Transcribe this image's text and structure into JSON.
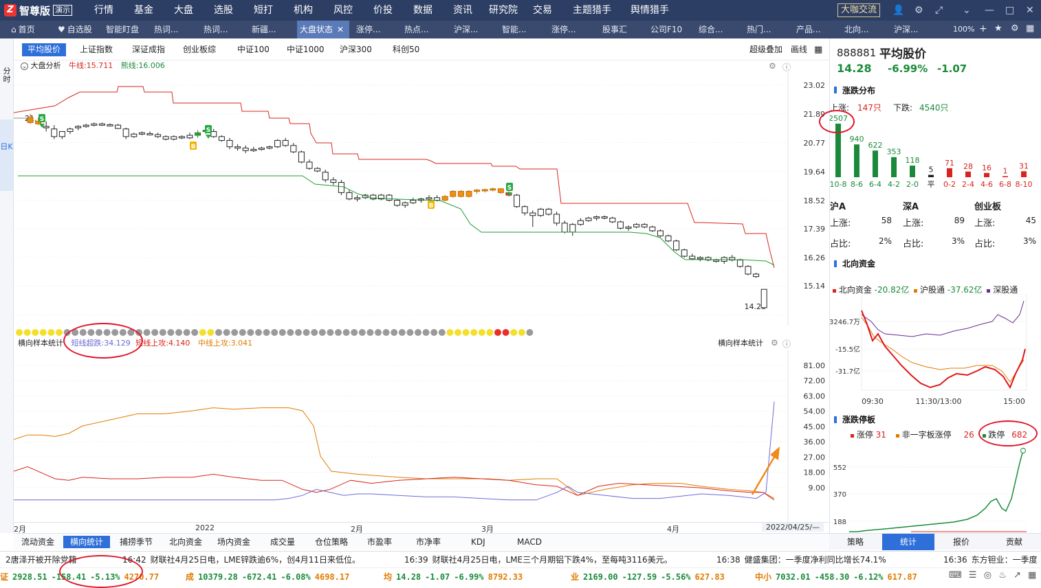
{
  "app": {
    "logo_text": "智尊版",
    "demo_badge": "演示",
    "consult_button": "大咖交流"
  },
  "topnav": [
    "行情",
    "基金",
    "大盘",
    "选股",
    "短打",
    "机构",
    "风控",
    "价投",
    "数据",
    "资讯",
    "研究院",
    "交易",
    "主题猎手",
    "舆情猎手"
  ],
  "tabs": [
    "首页",
    "自选股",
    "智能盯盘",
    "热词...",
    "热词...",
    "新疆...",
    "大盘状态",
    "涨停...",
    "热点...",
    "沪深...",
    "智能...",
    "涨停...",
    "股事汇",
    "公司F10",
    "综合...",
    "热门...",
    "产品...",
    "北向...",
    "沪深..."
  ],
  "active_tab_index": 6,
  "zoom_label": "100%",
  "left_tools": {
    "fenshi": "分时",
    "rik": "日K"
  },
  "index_tabs": [
    "平均股价",
    "上证指数",
    "深证成指",
    "创业板综",
    "中证100",
    "中证1000",
    "沪深300",
    "科创50"
  ],
  "index_right": {
    "overlay": "超级叠加",
    "draw": "画线"
  },
  "main_legend": {
    "title": "大盘分析",
    "bull_label": "牛线:",
    "bull_value": "15.711",
    "bear_label": "熊线:",
    "bear_value": "16.006"
  },
  "y_ticks_main": [
    "23.02",
    "21.89",
    "20.77",
    "19.64",
    "18.52",
    "17.39",
    "16.26",
    "15.14"
  ],
  "last_price_label": "14.28",
  "first_price_label": "21.",
  "dot_colors": {
    "grey": "#9a9a9a",
    "yellow": "#f3e02a",
    "red": "#e8302a"
  },
  "sub_legend": {
    "title": "横向样本统计",
    "short_label": "短线超跌:",
    "short_value": "34.129",
    "up_label": "短线上攻:",
    "up_value": "4.140",
    "mid_label": "中线上攻:",
    "mid_value": "3.041",
    "right_title": "横向样本统计"
  },
  "y_ticks_sub": [
    "81.00",
    "72.00",
    "63.00",
    "54.00",
    "45.00",
    "36.00",
    "27.00",
    "18.00",
    "9.00"
  ],
  "x_labels": [
    "2月",
    "2022",
    "2月",
    "3月",
    "4月"
  ],
  "date_label": "2022/04/25/—",
  "bottom_tabs": [
    "流动资金",
    "横向统计",
    "捕捞季节",
    "北向资金",
    "场内资金",
    "成交量",
    "仓位策略",
    "市盈率",
    "市净率",
    "KDJ",
    "MACD"
  ],
  "bottom_tab_active": 1,
  "news": [
    {
      "text": "2唐泽开被开除党籍"
    },
    {
      "time": "16:42",
      "text": "财联社4月25日电，LME锌跌逾6%，创4月11日来低位。"
    },
    {
      "time": "16:39",
      "text": "财联社4月25日电，LME三个月期铝下跌4%，至每吨3116美元。"
    },
    {
      "time": "16:38",
      "text": "健盛集团：一季度净利同比增长74.1%"
    },
    {
      "time": "16:36",
      "text": "东方钽业：一季度"
    }
  ],
  "quotes": [
    {
      "name": "证",
      "price": "2928.51",
      "chg": "-158.41",
      "pct": "-5.13%",
      "extra": "4270.77"
    },
    {
      "name": "成",
      "price": "10379.28",
      "chg": "-672.41",
      "pct": "-6.08%",
      "extra": "4698.17"
    },
    {
      "name": "均",
      "price": "14.28",
      "chg": "-1.07",
      "pct": "-6.99%",
      "extra": "8792.33"
    },
    {
      "name": "业",
      "price": "2169.00",
      "chg": "-127.59",
      "pct": "-5.56%",
      "extra": "627.83"
    },
    {
      "name": "中小",
      "price": "7032.01",
      "chg": "-458.30",
      "pct": "-6.12%",
      "extra": "617.87"
    }
  ],
  "stock": {
    "code": "888881",
    "name": "平均股价",
    "price": "14.28",
    "pct": "-6.99%",
    "chg": "-1.07"
  },
  "dist": {
    "title": "涨跌分布",
    "up_label": "上涨:",
    "up_value": "147只",
    "down_label": "下跌:",
    "down_value": "4540只",
    "bars": [
      {
        "label": "10-8",
        "value": 2507,
        "color": "green"
      },
      {
        "label": "8-6",
        "value": 940,
        "color": "green"
      },
      {
        "label": "6-4",
        "value": 622,
        "color": "green"
      },
      {
        "label": "4-2",
        "value": 353,
        "color": "green"
      },
      {
        "label": "2-0",
        "value": 118,
        "color": "green"
      },
      {
        "label": "平",
        "value": 5,
        "color": "black"
      },
      {
        "label": "0-2",
        "value": 71,
        "color": "red"
      },
      {
        "label": "2-4",
        "value": 28,
        "color": "red"
      },
      {
        "label": "4-6",
        "value": 16,
        "color": "red"
      },
      {
        "label": "6-8",
        "value": 1,
        "color": "red"
      },
      {
        "label": "8-10",
        "value": 31,
        "color": "red"
      }
    ]
  },
  "markets": [
    {
      "name": "沪A",
      "up_label": "上涨:",
      "up": "58",
      "ratio_label": "占比:",
      "ratio": "2%"
    },
    {
      "name": "深A",
      "up_label": "上涨:",
      "up": "89",
      "ratio_label": "占比:",
      "ratio": "3%"
    },
    {
      "name": "创业板",
      "up_label": "上涨:",
      "up": "45",
      "ratio_label": "占比:",
      "ratio": "3%"
    }
  ],
  "north": {
    "title": "北向资金",
    "l1": "北向资金",
    "v1": "-20.82亿",
    "l2": "沪股通",
    "v2": "-37.62亿",
    "l3": "深股通",
    "y_labels": [
      "3246.7万",
      "-15.5亿",
      "-31.7亿"
    ],
    "x_labels": [
      "09:30",
      "11:30/13:00",
      "15:00"
    ]
  },
  "limit": {
    "title": "涨跌停板",
    "l1": "涨停",
    "v1": "31",
    "l2": "非一字板涨停",
    "v2": "26",
    "l3": "跌停",
    "v3": "682",
    "y_labels": [
      "552",
      "370",
      "188"
    ]
  },
  "side_tabs": [
    "策略",
    "统计",
    "报价",
    "贡献"
  ],
  "side_tab_active": 1
}
